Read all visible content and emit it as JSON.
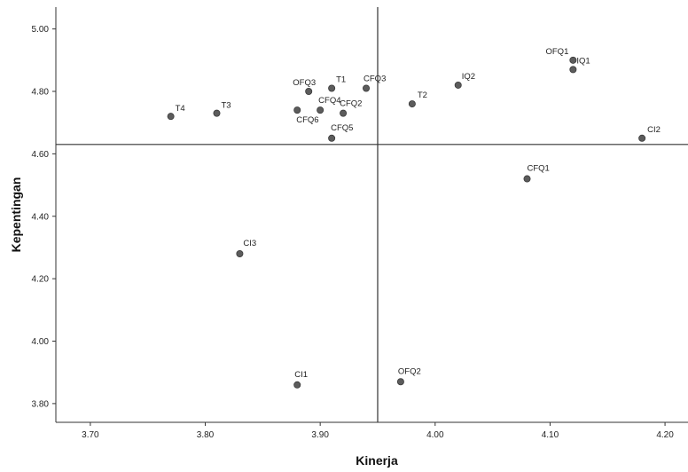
{
  "chart_data": {
    "type": "scatter",
    "xlabel": "Kinerja",
    "ylabel": "Kepentingan",
    "xlim": [
      3.67,
      4.22
    ],
    "ylim": [
      3.74,
      5.07
    ],
    "xticks": [
      3.7,
      3.8,
      3.9,
      4.0,
      4.1,
      4.2
    ],
    "xtick_labels": [
      "3.70",
      "3.80",
      "3.90",
      "4.00",
      "4.10",
      "4.20"
    ],
    "yticks": [
      3.8,
      4.0,
      4.2,
      4.4,
      4.6,
      4.8,
      5.0
    ],
    "ytick_labels": [
      "3.80",
      "4.00",
      "4.20",
      "4.40",
      "4.60",
      "4.80",
      "5.00"
    ],
    "reference_lines": {
      "x": 3.95,
      "y": 4.63
    },
    "grid": false,
    "marker_color": "#5c5c5c",
    "points": [
      {
        "label": "T4",
        "x": 3.77,
        "y": 4.72
      },
      {
        "label": "T3",
        "x": 3.81,
        "y": 4.73
      },
      {
        "label": "OFQ3",
        "x": 3.89,
        "y": 4.8
      },
      {
        "label": "T1",
        "x": 3.91,
        "y": 4.81
      },
      {
        "label": "CFQ3",
        "x": 3.94,
        "y": 4.81
      },
      {
        "label": "CFQ4",
        "x": 3.9,
        "y": 4.74
      },
      {
        "label": "CFQ6",
        "x": 3.88,
        "y": 4.74
      },
      {
        "label": "CFQ2",
        "x": 3.92,
        "y": 4.73
      },
      {
        "label": "CFQ5",
        "x": 3.91,
        "y": 4.65
      },
      {
        "label": "T2",
        "x": 3.98,
        "y": 4.76
      },
      {
        "label": "IQ2",
        "x": 4.02,
        "y": 4.82
      },
      {
        "label": "OFQ1",
        "x": 4.12,
        "y": 4.9
      },
      {
        "label": "IQ1",
        "x": 4.12,
        "y": 4.87
      },
      {
        "label": "CI2",
        "x": 4.18,
        "y": 4.65
      },
      {
        "label": "CFQ1",
        "x": 4.08,
        "y": 4.52
      },
      {
        "label": "CI3",
        "x": 3.83,
        "y": 4.28
      },
      {
        "label": "CI1",
        "x": 3.88,
        "y": 3.86
      },
      {
        "label": "OFQ2",
        "x": 3.97,
        "y": 3.87
      }
    ]
  }
}
